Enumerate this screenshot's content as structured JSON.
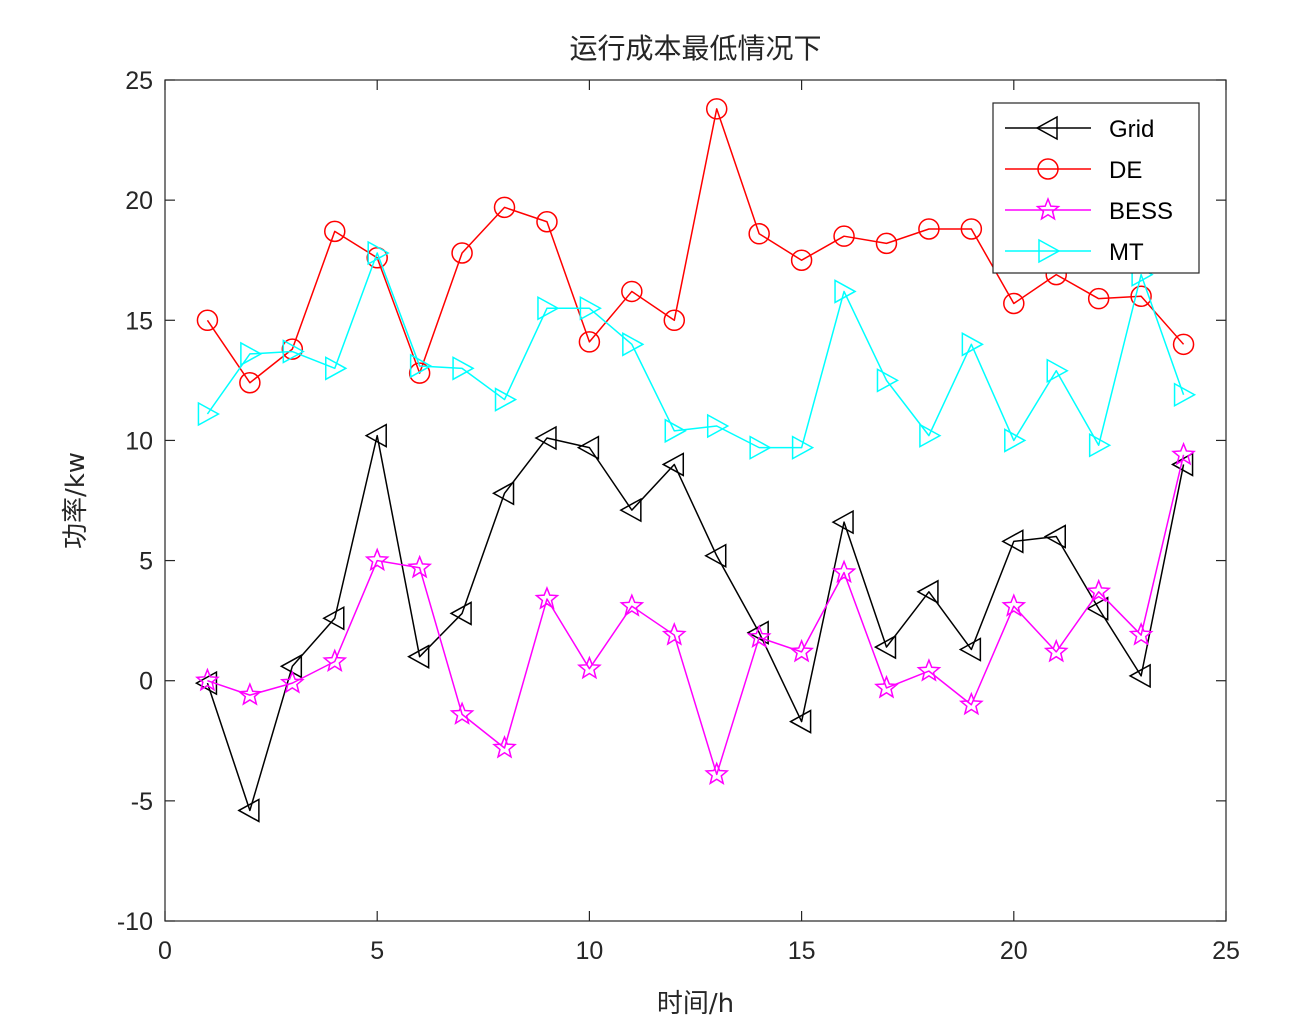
{
  "chart_data": {
    "type": "line",
    "title": "运行成本最低情况下",
    "xlabel": "时间/h",
    "ylabel": "功率/kw",
    "xlim": [
      0,
      25
    ],
    "ylim": [
      -10,
      25
    ],
    "xticks": [
      0,
      5,
      10,
      15,
      20,
      25
    ],
    "yticks": [
      -10,
      -5,
      0,
      5,
      10,
      15,
      20,
      25
    ],
    "xtick_labels": [
      "0",
      "5",
      "10",
      "15",
      "20",
      "25"
    ],
    "ytick_labels": [
      "-10",
      "-5",
      "0",
      "5",
      "10",
      "15",
      "20",
      "25"
    ],
    "grid": false,
    "legend_position": "top-right",
    "x": [
      1,
      2,
      3,
      4,
      5,
      6,
      7,
      8,
      9,
      10,
      11,
      12,
      13,
      14,
      15,
      16,
      17,
      18,
      19,
      20,
      21,
      22,
      23,
      24
    ],
    "series": [
      {
        "name": "Grid",
        "color": "#000000",
        "marker": "triangle-left",
        "values": [
          -0.1,
          -5.4,
          0.6,
          2.6,
          10.2,
          1.0,
          2.8,
          7.8,
          10.1,
          9.7,
          7.1,
          9.0,
          5.2,
          2.0,
          -1.7,
          6.6,
          1.4,
          3.7,
          1.3,
          5.8,
          6.0,
          3.0,
          0.2,
          9.0
        ]
      },
      {
        "name": "DE",
        "color": "#ff0000",
        "marker": "circle",
        "values": [
          15.0,
          12.4,
          13.8,
          18.7,
          17.6,
          12.8,
          17.8,
          19.7,
          19.1,
          14.1,
          16.2,
          15.0,
          23.8,
          18.6,
          17.5,
          18.5,
          18.2,
          18.8,
          18.8,
          15.7,
          16.9,
          15.9,
          16.0,
          14.0
        ]
      },
      {
        "name": "BESS",
        "color": "#ff00ff",
        "marker": "star",
        "values": [
          0.0,
          -0.6,
          -0.1,
          0.8,
          5.0,
          4.7,
          -1.4,
          -2.8,
          3.4,
          0.5,
          3.1,
          1.9,
          -3.9,
          1.8,
          1.2,
          4.5,
          -0.3,
          0.4,
          -1.0,
          3.1,
          1.2,
          3.7,
          1.9,
          9.4
        ]
      },
      {
        "name": "MT",
        "color": "#00ffff",
        "marker": "triangle-right",
        "values": [
          11.1,
          13.6,
          13.7,
          13.0,
          17.8,
          13.1,
          13.0,
          11.7,
          15.5,
          15.5,
          14.0,
          10.4,
          10.6,
          9.7,
          9.7,
          16.2,
          12.5,
          10.2,
          14.0,
          10.0,
          12.9,
          9.8,
          16.9,
          11.9
        ]
      }
    ]
  }
}
